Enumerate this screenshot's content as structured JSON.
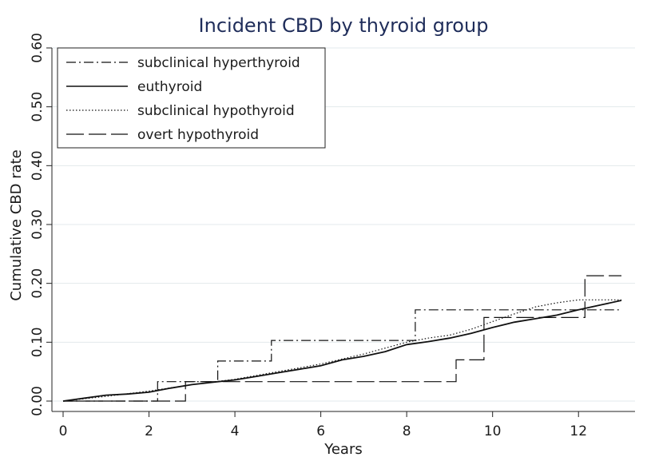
{
  "chart_data": {
    "type": "line",
    "title": "Incident CBD by thyroid group",
    "xlabel": "Years",
    "ylabel": "Cumulative CBD rate",
    "xlim": [
      0,
      13
    ],
    "ylim": [
      0,
      0.6
    ],
    "x_ticks": [
      "0",
      "2",
      "4",
      "6",
      "8",
      "10",
      "12"
    ],
    "y_ticks": [
      "0.00",
      "0.10",
      "0.20",
      "0.30",
      "0.40",
      "0.50",
      "0.60"
    ],
    "grid": "horizontal",
    "legend_position": "top-left",
    "series": [
      {
        "name": "subclinical hyperthyroid",
        "style": "dash-dot",
        "step": true,
        "points": [
          [
            0,
            0
          ],
          [
            2.2,
            0
          ],
          [
            2.2,
            0.033
          ],
          [
            3.6,
            0.033
          ],
          [
            3.6,
            0.068
          ],
          [
            4.85,
            0.068
          ],
          [
            4.85,
            0.103
          ],
          [
            8.2,
            0.103
          ],
          [
            8.2,
            0.155
          ],
          [
            13,
            0.155
          ]
        ]
      },
      {
        "name": "euthyroid",
        "style": "solid",
        "step": false,
        "points": [
          [
            0,
            0
          ],
          [
            0.5,
            0.005
          ],
          [
            1,
            0.01
          ],
          [
            1.5,
            0.012
          ],
          [
            2,
            0.015
          ],
          [
            2.5,
            0.022
          ],
          [
            3,
            0.028
          ],
          [
            3.5,
            0.032
          ],
          [
            4,
            0.036
          ],
          [
            4.5,
            0.042
          ],
          [
            5,
            0.048
          ],
          [
            5.5,
            0.054
          ],
          [
            6,
            0.06
          ],
          [
            6.5,
            0.07
          ],
          [
            7,
            0.076
          ],
          [
            7.5,
            0.084
          ],
          [
            8,
            0.096
          ],
          [
            8.5,
            0.101
          ],
          [
            9,
            0.107
          ],
          [
            9.5,
            0.115
          ],
          [
            10,
            0.125
          ],
          [
            10.5,
            0.134
          ],
          [
            11,
            0.14
          ],
          [
            11.5,
            0.146
          ],
          [
            12,
            0.155
          ],
          [
            12.5,
            0.163
          ],
          [
            13,
            0.171
          ]
        ]
      },
      {
        "name": "subclinical hypothyroid",
        "style": "dotted",
        "step": false,
        "points": [
          [
            0,
            0
          ],
          [
            1,
            0.008
          ],
          [
            2,
            0.017
          ],
          [
            3,
            0.028
          ],
          [
            4,
            0.037
          ],
          [
            5,
            0.05
          ],
          [
            6,
            0.063
          ],
          [
            7,
            0.08
          ],
          [
            8,
            0.1
          ],
          [
            8.5,
            0.107
          ],
          [
            9,
            0.112
          ],
          [
            9.5,
            0.122
          ],
          [
            10,
            0.135
          ],
          [
            10.5,
            0.148
          ],
          [
            11,
            0.16
          ],
          [
            11.5,
            0.167
          ],
          [
            12,
            0.172
          ],
          [
            13,
            0.172
          ]
        ]
      },
      {
        "name": "overt hypothyroid",
        "style": "long-dash",
        "step": true,
        "points": [
          [
            0,
            0
          ],
          [
            2.85,
            0
          ],
          [
            2.85,
            0.033
          ],
          [
            9.15,
            0.033
          ],
          [
            9.15,
            0.07
          ],
          [
            9.8,
            0.07
          ],
          [
            9.8,
            0.142
          ],
          [
            12.15,
            0.142
          ],
          [
            12.15,
            0.213
          ],
          [
            13,
            0.213
          ]
        ]
      }
    ]
  }
}
